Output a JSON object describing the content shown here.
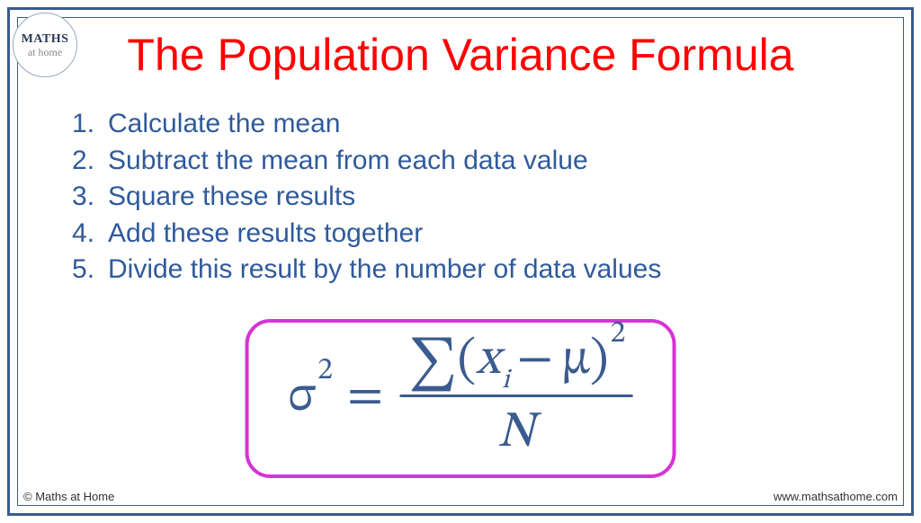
{
  "colors": {
    "frame_border": "#3a5b8f",
    "title": "#ff0000",
    "step_text": "#2f5a9b",
    "formula_text": "#3a5b8f",
    "formula_border": "#d633d6",
    "background": "#ffffff",
    "footer_text": "#333333",
    "logo_main": "#2b3a55",
    "logo_sub": "#8a8a8a",
    "logo_border": "#9aa9bd"
  },
  "typography": {
    "title_fontsize": 50,
    "step_fontsize": 30,
    "formula_fontsize": 56,
    "footer_fontsize": 13
  },
  "logo": {
    "main": "MATHS",
    "sub": "at home"
  },
  "title": "The Population Variance Formula",
  "steps": [
    "Calculate the mean",
    "Subtract the mean from each data value",
    "Square these results",
    "Add these results together",
    "Divide this result by the number of data values"
  ],
  "formula": {
    "lhs_sigma": "σ",
    "lhs_exp": "2",
    "equals": "=",
    "sum": "∑",
    "lparen": "(",
    "x": "x",
    "sub_i": "i",
    "minus": "−",
    "mu": "μ",
    "rparen": ")",
    "num_exp": "2",
    "denom": "N"
  },
  "footer": {
    "copyright": "© Maths at Home",
    "website": "www.mathsathome.com"
  }
}
